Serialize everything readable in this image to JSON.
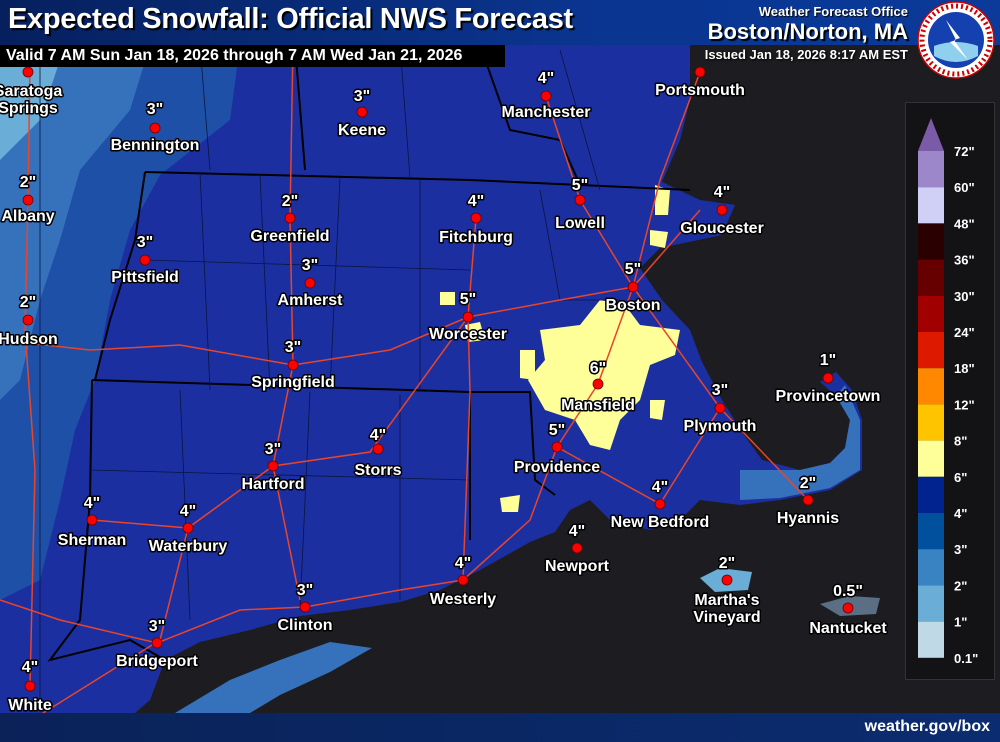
{
  "header": {
    "title": "Expected Snowfall: Official NWS Forecast",
    "valid": "Valid 7 AM Sun Jan 18, 2026 through 7 AM Wed Jan 21, 2026",
    "office_label": "Weather Forecast Office",
    "office": "Boston/Norton, MA",
    "issued": "Issued Jan 18, 2026 8:17 AM EST",
    "logo_text": "NATIONAL WEATHER SERVICE"
  },
  "footer": {
    "url": "weather.gov/box"
  },
  "legend": {
    "labels": [
      "72\"",
      "60\"",
      "48\"",
      "36\"",
      "30\"",
      "24\"",
      "18\"",
      "12\"",
      "8\"",
      "6\"",
      "4\"",
      "3\"",
      "2\"",
      "1\"",
      "0.1\""
    ],
    "colors": [
      "#9b87c9",
      "#d0d0f7",
      "#2a0000",
      "#660000",
      "#a00000",
      "#dd1a00",
      "#ff8800",
      "#ffc400",
      "#ffff99",
      "#002390",
      "#00509d",
      "#3a83c3",
      "#6aadd6",
      "#c0d9e6"
    ],
    "arrow_color": "#7b5aa8"
  },
  "colors": {
    "ocean": "#1d1d21",
    "land_4to6": "#1c2fa0",
    "land_3to4": "#1f50a8",
    "land_2to3": "#3672bb",
    "land_1to2": "#6aadd6",
    "land_6to8": "#ffff99",
    "roads": "#e8452a",
    "borders": "#000000",
    "city_dot": "#ff0000"
  },
  "cities": [
    {
      "name": "Saratoga Springs",
      "amount": ""
    },
    {
      "name": "Bennington",
      "amount": "3\""
    },
    {
      "name": "Keene",
      "amount": "3\""
    },
    {
      "name": "Manchester",
      "amount": "4\""
    },
    {
      "name": "Portsmouth",
      "amount": ""
    },
    {
      "name": "Albany",
      "amount": "2\""
    },
    {
      "name": "Greenfield",
      "amount": "2\""
    },
    {
      "name": "Fitchburg",
      "amount": "4\""
    },
    {
      "name": "Lowell",
      "amount": "5\""
    },
    {
      "name": "Gloucester",
      "amount": "4\""
    },
    {
      "name": "Pittsfield",
      "amount": "3\""
    },
    {
      "name": "Amherst",
      "amount": "3\""
    },
    {
      "name": "Boston",
      "amount": "5\""
    },
    {
      "name": "Hudson",
      "amount": "2\""
    },
    {
      "name": "Worcester",
      "amount": "5\""
    },
    {
      "name": "Springfield",
      "amount": "3\""
    },
    {
      "name": "Mansfield",
      "amount": "6\""
    },
    {
      "name": "Provincetown",
      "amount": "1\""
    },
    {
      "name": "Plymouth",
      "amount": "3\""
    },
    {
      "name": "Storrs",
      "amount": "4\""
    },
    {
      "name": "Hartford",
      "amount": "3\""
    },
    {
      "name": "Providence",
      "amount": "5\""
    },
    {
      "name": "New Bedford",
      "amount": "4\""
    },
    {
      "name": "Hyannis",
      "amount": "2\""
    },
    {
      "name": "Sherman",
      "amount": "4\""
    },
    {
      "name": "Waterbury",
      "amount": "4\""
    },
    {
      "name": "Newport",
      "amount": "4\""
    },
    {
      "name": "Westerly",
      "amount": "4\""
    },
    {
      "name": "Martha's Vineyard",
      "amount": "2\""
    },
    {
      "name": "Nantucket",
      "amount": "0.5\""
    },
    {
      "name": "Clinton",
      "amount": "3\""
    },
    {
      "name": "Bridgeport",
      "amount": "3\""
    },
    {
      "name": "White Plains",
      "amount": "4\""
    }
  ]
}
